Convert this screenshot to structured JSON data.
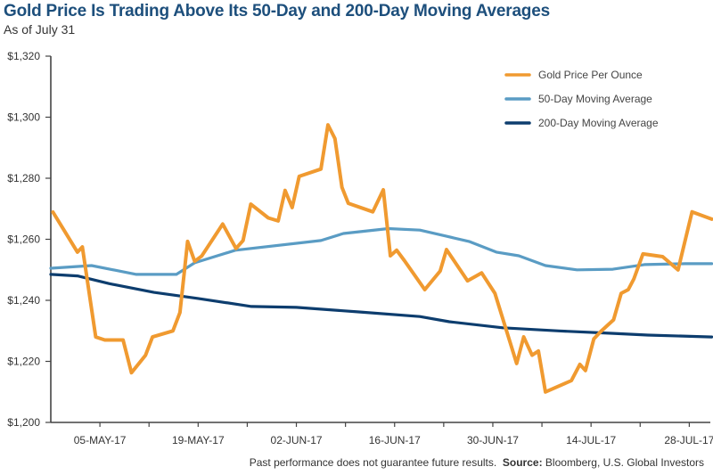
{
  "chart_data": {
    "type": "line",
    "title": "Gold Price Is Trading Above Its 50-Day and 200-Day Moving Averages",
    "subtitle": "As of July 31",
    "xlabel": "",
    "ylabel": "",
    "x_unit": "days since 28-APR-17",
    "xlim": [
      0,
      94
    ],
    "ylim": [
      1200,
      1320
    ],
    "yticks": [
      1200,
      1220,
      1240,
      1260,
      1280,
      1300,
      1320
    ],
    "ytick_labels": [
      "$1,200",
      "$1,220",
      "$1,240",
      "$1,260",
      "$1,280",
      "$1,300",
      "$1,320"
    ],
    "xticks": [
      0,
      7,
      14,
      21,
      28,
      35,
      42,
      49,
      56,
      63,
      70,
      77,
      84,
      91
    ],
    "xtick_labels": [
      {
        "x": 7,
        "label": "05-MAY-17"
      },
      {
        "x": 21,
        "label": "19-MAY-17"
      },
      {
        "x": 35,
        "label": "02-JUN-17"
      },
      {
        "x": 49,
        "label": "16-JUN-17"
      },
      {
        "x": 63,
        "label": "30-JUN-17"
      },
      {
        "x": 77,
        "label": "14-JUL-17"
      },
      {
        "x": 91,
        "label": "28-JUL-17"
      }
    ],
    "grid": false,
    "legend_position": "top-right",
    "series": [
      {
        "name": "Gold Price Per Ounce",
        "color": "#f09a30",
        "x": [
          0.3,
          3.8,
          4.5,
          6.4,
          7.7,
          10.3,
          11.5,
          13.5,
          14.5,
          17.4,
          18.4,
          19.5,
          20.5,
          21.5,
          24.5,
          26.4,
          27.4,
          28.5,
          31.0,
          32.4,
          33.4,
          34.4,
          35.4,
          38.5,
          39.5,
          40.5,
          41.5,
          42.4,
          45.9,
          47.4,
          48.4,
          49.3,
          50.4,
          53.3,
          55.5,
          56.4,
          59.4,
          61.4,
          63.3,
          66.4,
          67.4,
          68.6,
          69.5,
          70.5,
          72.2,
          74.2,
          75.4,
          76.2,
          77.4,
          78.4,
          80.2,
          81.3,
          82.3,
          83.1,
          84.4,
          87.2,
          89.4,
          91.4,
          94.2
        ],
        "values": [
          1268.9,
          1255.8,
          1257.5,
          1228.0,
          1227.0,
          1227.0,
          1216.3,
          1222.0,
          1228.0,
          1230.0,
          1236.0,
          1259.3,
          1252.8,
          1254.5,
          1265.0,
          1257.0,
          1259.6,
          1271.5,
          1267.0,
          1266.0,
          1276.0,
          1270.4,
          1280.6,
          1283.0,
          1297.5,
          1293.0,
          1277.0,
          1271.8,
          1269.0,
          1276.2,
          1254.6,
          1256.4,
          1253.0,
          1243.5,
          1249.6,
          1256.6,
          1246.4,
          1249.0,
          1242.3,
          1219.3,
          1228.0,
          1222.0,
          1223.4,
          1210.0,
          1211.7,
          1213.7,
          1219.0,
          1217.0,
          1227.4,
          1229.8,
          1233.6,
          1242.3,
          1243.5,
          1247.0,
          1255.2,
          1254.3,
          1250.0,
          1269.0,
          1266.6
        ]
      },
      {
        "name": "50-Day Moving Average",
        "color": "#5a9cc4",
        "x": [
          0,
          5.8,
          12.2,
          17.9,
          20.5,
          26.3,
          38.5,
          41.7,
          48.1,
          52.6,
          56.4,
          59.6,
          63.5,
          66.7,
          70.5,
          75.0,
          80.1,
          84.6,
          90.4,
          94.2
        ],
        "values": [
          1250.5,
          1251.4,
          1248.5,
          1248.5,
          1252.3,
          1256.4,
          1259.6,
          1261.9,
          1263.5,
          1263.0,
          1261.0,
          1259.3,
          1255.8,
          1254.6,
          1251.4,
          1250.0,
          1250.2,
          1251.7,
          1252.0,
          1252.0
        ]
      },
      {
        "name": "200-Day Moving Average",
        "color": "#0d3d6e",
        "x": [
          0,
          3.8,
          8.3,
          14.7,
          21.0,
          28.6,
          35.0,
          43.9,
          52.6,
          56.8,
          64.4,
          72.4,
          79.9,
          85.1,
          94.2
        ],
        "values": [
          1248.5,
          1248.0,
          1245.5,
          1242.6,
          1240.6,
          1238.0,
          1237.7,
          1236.2,
          1234.7,
          1233.0,
          1231.0,
          1230.0,
          1229.2,
          1228.6,
          1228.0
        ]
      }
    ]
  },
  "footnote": {
    "disclaimer": "Past performance does not guarantee future results.",
    "source_label": "Source:",
    "source_text": "Bloomberg, U.S. Global Investors"
  }
}
